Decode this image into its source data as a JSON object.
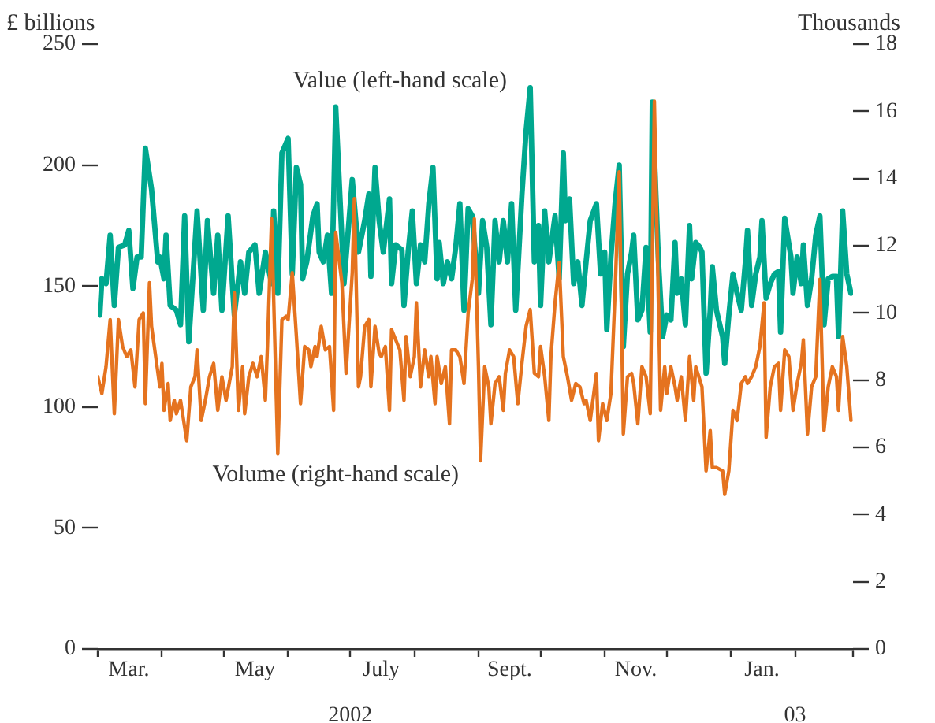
{
  "chart_data": {
    "type": "line",
    "ylabel": "£ billions",
    "y2label": "Thousands",
    "xlim": [
      "2002-03-01",
      "2003-03-01"
    ],
    "xticks": [
      {
        "value": "2002-03-01",
        "label": null
      },
      {
        "value": "2002-03-16",
        "label": "Mar."
      },
      {
        "value": "2002-04-01",
        "label": null
      },
      {
        "value": "2002-05-01",
        "label": null
      },
      {
        "value": "2002-05-16",
        "label": "May"
      },
      {
        "value": "2002-06-01",
        "label": null
      },
      {
        "value": "2002-07-01",
        "label": null
      },
      {
        "value": "2002-07-16",
        "label": "July"
      },
      {
        "value": "2002-08-01",
        "label": null
      },
      {
        "value": "2002-09-01",
        "label": null
      },
      {
        "value": "2002-09-16",
        "label": "Sept."
      },
      {
        "value": "2002-10-01",
        "label": null
      },
      {
        "value": "2002-11-01",
        "label": null
      },
      {
        "value": "2002-11-16",
        "label": "Nov."
      },
      {
        "value": "2002-12-01",
        "label": null
      },
      {
        "value": "2003-01-01",
        "label": null
      },
      {
        "value": "2003-01-16",
        "label": "Jan."
      },
      {
        "value": "2003-02-01",
        "label": null
      },
      {
        "value": "2003-03-01",
        "label": null
      }
    ],
    "x2lim": [
      "2002-03-01",
      "2003-03-01"
    ],
    "x2ticks": [
      {
        "value": "2002-07-01",
        "label": "2002"
      },
      {
        "value": "2003-02-01",
        "label": "03"
      }
    ],
    "ylim": [
      0,
      250
    ],
    "yticks": [
      0,
      50,
      100,
      150,
      200,
      250
    ],
    "y2lim": [
      0,
      18
    ],
    "y2ticks": [
      0,
      2,
      4,
      6,
      8,
      10,
      12,
      14,
      16,
      18
    ],
    "marker": "none",
    "line_style": "solid",
    "series": [
      {
        "name": "Value (left-hand scale)",
        "color": "#00a88f",
        "axis": "y",
        "x": [
          "2002-03-02",
          "2002-03-03",
          "2002-03-05",
          "2002-03-07",
          "2002-03-09",
          "2002-03-11",
          "2002-03-14",
          "2002-03-16",
          "2002-03-18",
          "2002-03-20",
          "2002-03-22",
          "2002-03-24",
          "2002-03-27",
          "2002-03-30",
          "2002-03-31",
          "2002-04-02",
          "2002-04-03",
          "2002-04-05",
          "2002-04-08",
          "2002-04-10",
          "2002-04-12",
          "2002-04-14",
          "2002-04-18",
          "2002-04-21",
          "2002-04-23",
          "2002-04-26",
          "2002-04-28",
          "2002-04-30",
          "2002-05-03",
          "2002-05-06",
          "2002-05-09",
          "2002-05-11",
          "2002-05-13",
          "2002-05-16",
          "2002-05-18",
          "2002-05-21",
          "2002-05-24",
          "2002-05-25",
          "2002-05-27",
          "2002-05-29",
          "2002-06-01",
          "2002-06-03",
          "2002-06-05",
          "2002-06-07",
          "2002-06-08",
          "2002-06-10",
          "2002-06-13",
          "2002-06-15",
          "2002-06-16",
          "2002-06-18",
          "2002-06-20",
          "2002-06-22",
          "2002-06-24",
          "2002-06-28",
          "2002-07-02",
          "2002-07-05",
          "2002-07-08",
          "2002-07-10",
          "2002-07-11",
          "2002-07-13",
          "2002-07-15",
          "2002-07-17",
          "2002-07-20",
          "2002-07-21",
          "2002-07-23",
          "2002-07-26",
          "2002-07-27",
          "2002-07-29",
          "2002-07-31",
          "2002-08-02",
          "2002-08-04",
          "2002-08-06",
          "2002-08-08",
          "2002-08-10",
          "2002-08-12",
          "2002-08-13",
          "2002-08-15",
          "2002-08-17",
          "2002-08-19",
          "2002-08-21",
          "2002-08-23",
          "2002-08-25",
          "2002-08-27",
          "2002-08-29",
          "2002-09-01",
          "2002-09-03",
          "2002-09-05",
          "2002-09-07",
          "2002-09-09",
          "2002-09-11",
          "2002-09-13",
          "2002-09-15",
          "2002-09-17",
          "2002-09-19",
          "2002-09-22",
          "2002-09-24",
          "2002-09-26",
          "2002-09-28",
          "2002-09-30",
          "2002-10-01",
          "2002-10-03",
          "2002-10-05",
          "2002-10-08",
          "2002-10-10",
          "2002-10-12",
          "2002-10-13",
          "2002-10-15",
          "2002-10-17",
          "2002-10-19",
          "2002-10-21",
          "2002-10-23",
          "2002-10-25",
          "2002-10-28",
          "2002-10-30",
          "2002-11-01",
          "2002-11-02",
          "2002-11-04",
          "2002-11-06",
          "2002-11-08",
          "2002-11-10",
          "2002-11-12",
          "2002-11-14",
          "2002-11-15",
          "2002-11-17",
          "2002-11-19",
          "2002-11-21",
          "2002-11-23",
          "2002-11-24",
          "2002-11-27",
          "2002-11-29",
          "2002-12-01",
          "2002-12-03",
          "2002-12-05",
          "2002-12-06",
          "2002-12-08",
          "2002-12-10",
          "2002-12-12",
          "2002-12-13",
          "2002-12-15",
          "2002-12-17",
          "2002-12-18",
          "2002-12-20",
          "2002-12-22",
          "2002-12-23",
          "2002-12-25",
          "2002-12-28",
          "2002-12-29",
          "2002-12-31",
          "2003-01-02",
          "2003-01-04",
          "2003-01-06",
          "2003-01-08",
          "2003-01-09",
          "2003-01-11",
          "2003-01-13",
          "2003-01-15",
          "2003-01-16",
          "2003-01-18",
          "2003-01-20",
          "2003-01-22",
          "2003-01-24",
          "2003-01-25",
          "2003-01-27",
          "2003-01-30",
          "2003-01-31",
          "2003-02-02",
          "2003-02-04",
          "2003-02-05",
          "2003-02-07",
          "2003-02-09",
          "2003-02-11",
          "2003-02-13",
          "2003-02-15",
          "2003-02-17",
          "2003-02-19",
          "2003-02-21",
          "2003-02-22",
          "2003-02-24",
          "2003-02-26",
          "2003-02-28"
        ],
        "values": [
          138,
          153,
          151,
          171,
          142,
          166,
          167,
          173,
          149,
          162,
          162,
          207,
          190,
          160,
          162,
          153,
          171,
          142,
          140,
          134,
          179,
          127,
          181,
          140,
          177,
          147,
          171,
          140,
          179,
          138,
          160,
          147,
          164,
          167,
          147,
          164,
          151,
          181,
          147,
          205,
          211,
          155,
          199,
          192,
          153,
          160,
          179,
          184,
          164,
          160,
          171,
          147,
          224,
          151,
          194,
          164,
          177,
          188,
          154,
          199,
          177,
          164,
          186,
          151,
          167,
          165,
          142,
          164,
          181,
          151,
          167,
          160,
          184,
          199,
          153,
          168,
          151,
          160,
          153,
          166,
          184,
          140,
          182,
          179,
          147,
          177,
          166,
          134,
          177,
          160,
          177,
          160,
          184,
          140,
          188,
          214,
          232,
          160,
          175,
          142,
          181,
          160,
          179,
          153,
          205,
          177,
          186,
          151,
          160,
          142,
          160,
          177,
          184,
          155,
          164,
          132,
          162,
          184,
          200,
          125,
          155,
          164,
          171,
          136,
          140,
          166,
          131,
          226,
          160,
          129,
          138,
          136,
          168,
          147,
          153,
          134,
          175,
          153,
          168,
          166,
          164,
          114,
          140,
          158,
          140,
          129,
          118,
          138,
          155,
          147,
          140,
          160,
          173,
          142,
          155,
          162,
          177,
          145,
          151,
          155,
          156,
          131,
          178,
          162,
          147,
          162,
          151,
          167,
          142,
          153,
          171,
          179,
          134,
          153,
          154,
          154,
          129,
          181,
          155,
          147
        ]
      },
      {
        "name": "Volume (right-hand scale)",
        "color": "#e5731f",
        "axis": "y2",
        "x": [
          "2002-03-01",
          "2002-03-03",
          "2002-03-05",
          "2002-03-07",
          "2002-03-09",
          "2002-03-11",
          "2002-03-13",
          "2002-03-15",
          "2002-03-17",
          "2002-03-19",
          "2002-03-21",
          "2002-03-23",
          "2002-03-24",
          "2002-03-26",
          "2002-03-27",
          "2002-03-29",
          "2002-03-31",
          "2002-04-01",
          "2002-04-02",
          "2002-04-04",
          "2002-04-05",
          "2002-04-07",
          "2002-04-08",
          "2002-04-10",
          "2002-04-13",
          "2002-04-15",
          "2002-04-17",
          "2002-04-18",
          "2002-04-20",
          "2002-04-22",
          "2002-04-24",
          "2002-04-26",
          "2002-04-28",
          "2002-04-30",
          "2002-05-02",
          "2002-05-05",
          "2002-05-06",
          "2002-05-08",
          "2002-05-10",
          "2002-05-11",
          "2002-05-13",
          "2002-05-15",
          "2002-05-17",
          "2002-05-19",
          "2002-05-21",
          "2002-05-22",
          "2002-05-24",
          "2002-05-27",
          "2002-05-29",
          "2002-05-31",
          "2002-06-01",
          "2002-06-03",
          "2002-06-05",
          "2002-06-07",
          "2002-06-09",
          "2002-06-11",
          "2002-06-12",
          "2002-06-14",
          "2002-06-15",
          "2002-06-17",
          "2002-06-19",
          "2002-06-21",
          "2002-06-23",
          "2002-06-24",
          "2002-06-27",
          "2002-06-29",
          "2002-07-02",
          "2002-07-03",
          "2002-07-05",
          "2002-07-06",
          "2002-07-08",
          "2002-07-10",
          "2002-07-11",
          "2002-07-13",
          "2002-07-15",
          "2002-07-16",
          "2002-07-18",
          "2002-07-20",
          "2002-07-21",
          "2002-07-23",
          "2002-07-25",
          "2002-07-27",
          "2002-07-28",
          "2002-07-30",
          "2002-08-01",
          "2002-08-02",
          "2002-08-04",
          "2002-08-06",
          "2002-08-08",
          "2002-08-09",
          "2002-08-11",
          "2002-08-12",
          "2002-08-14",
          "2002-08-16",
          "2002-08-18",
          "2002-08-19",
          "2002-08-21",
          "2002-08-23",
          "2002-08-25",
          "2002-08-27",
          "2002-08-29",
          "2002-08-30",
          "2002-09-01",
          "2002-09-02",
          "2002-09-04",
          "2002-09-06",
          "2002-09-07",
          "2002-09-09",
          "2002-09-11",
          "2002-09-13",
          "2002-09-14",
          "2002-09-16",
          "2002-09-18",
          "2002-09-20",
          "2002-09-22",
          "2002-09-24",
          "2002-09-26",
          "2002-09-28",
          "2002-09-30",
          "2002-10-01",
          "2002-10-03",
          "2002-10-05",
          "2002-10-06",
          "2002-10-08",
          "2002-10-10",
          "2002-10-12",
          "2002-10-14",
          "2002-10-16",
          "2002-10-18",
          "2002-10-20",
          "2002-10-22",
          "2002-10-23",
          "2002-10-25",
          "2002-10-28",
          "2002-10-29",
          "2002-10-31",
          "2002-11-02",
          "2002-11-04",
          "2002-11-06",
          "2002-11-08",
          "2002-11-10",
          "2002-11-12",
          "2002-11-14",
          "2002-11-15",
          "2002-11-17",
          "2002-11-19",
          "2002-11-21",
          "2002-11-23",
          "2002-11-25",
          "2002-11-28",
          "2002-11-30",
          "2002-12-01",
          "2002-12-03",
          "2002-12-05",
          "2002-12-06",
          "2002-12-08",
          "2002-12-10",
          "2002-12-12",
          "2002-12-14",
          "2002-12-15",
          "2002-12-18",
          "2002-12-20",
          "2002-12-22",
          "2002-12-23",
          "2002-12-25",
          "2002-12-28",
          "2002-12-29",
          "2002-12-31",
          "2003-01-02",
          "2003-01-04",
          "2003-01-06",
          "2003-01-08",
          "2003-01-09",
          "2003-01-11",
          "2003-01-13",
          "2003-01-15",
          "2003-01-17",
          "2003-01-18",
          "2003-01-20",
          "2003-01-22",
          "2003-01-24",
          "2003-01-25",
          "2003-01-27",
          "2003-01-29",
          "2003-01-31",
          "2003-02-02",
          "2003-02-04",
          "2003-02-05",
          "2003-02-07",
          "2003-02-09",
          "2003-02-11",
          "2003-02-13",
          "2003-02-15",
          "2003-02-17",
          "2003-02-19",
          "2003-02-21",
          "2003-02-22",
          "2003-02-24",
          "2003-02-26",
          "2003-02-28"
        ],
        "values": [
          8.1,
          7.6,
          8.4,
          9.8,
          7.0,
          9.8,
          9.0,
          8.7,
          8.9,
          7.8,
          9.8,
          10.0,
          7.3,
          10.9,
          9.6,
          8.7,
          7.8,
          8.5,
          7.1,
          7.9,
          6.8,
          7.4,
          7.0,
          7.4,
          6.2,
          7.8,
          8.1,
          8.9,
          6.8,
          7.4,
          8.1,
          8.5,
          7.1,
          8.1,
          7.4,
          8.4,
          10.6,
          7.1,
          8.4,
          7.0,
          8.1,
          8.5,
          8.1,
          8.7,
          7.4,
          9.0,
          12.8,
          5.8,
          9.8,
          9.9,
          9.8,
          11.2,
          9.3,
          7.3,
          9.0,
          8.9,
          8.4,
          9.0,
          8.7,
          9.6,
          8.9,
          9.0,
          7.1,
          12.4,
          10.9,
          8.2,
          11.2,
          13.4,
          7.8,
          8.1,
          9.6,
          9.8,
          7.8,
          9.6,
          8.8,
          8.7,
          9.0,
          7.1,
          9.5,
          9.2,
          8.9,
          7.4,
          9.3,
          8.1,
          8.7,
          10.3,
          7.8,
          8.9,
          8.1,
          8.7,
          7.3,
          8.7,
          7.9,
          8.4,
          6.7,
          8.9,
          8.9,
          8.7,
          7.9,
          10.0,
          11.0,
          12.8,
          8.4,
          5.6,
          8.4,
          7.8,
          6.7,
          7.9,
          8.1,
          7.1,
          8.2,
          8.9,
          8.7,
          7.3,
          8.5,
          9.6,
          10.1,
          8.2,
          8.1,
          9.0,
          8.1,
          6.8,
          8.7,
          10.3,
          11.5,
          8.7,
          8.1,
          7.4,
          7.9,
          7.8,
          7.3,
          7.4,
          6.8,
          8.2,
          6.2,
          7.3,
          6.8,
          7.6,
          10.6,
          14.2,
          6.4,
          8.1,
          8.2,
          7.9,
          6.7,
          8.4,
          8.1,
          7.0,
          16.3,
          7.1,
          8.4,
          7.6,
          8.4,
          7.8,
          7.4,
          8.1,
          6.8,
          8.7,
          7.4,
          8.4,
          7.8,
          5.3,
          6.5,
          5.4,
          5.4,
          5.3,
          4.6,
          5.3,
          7.1,
          6.8,
          7.9,
          8.1,
          7.9,
          8.1,
          8.4,
          9.0,
          10.3,
          6.3,
          7.8,
          8.4,
          8.5,
          7.1,
          8.9,
          8.7,
          7.1,
          7.9,
          8.5,
          9.2,
          6.4,
          7.8,
          8.1,
          11.0,
          6.5,
          7.8,
          8.4,
          8.1,
          7.1,
          9.3,
          8.4,
          6.8
        ]
      }
    ]
  }
}
